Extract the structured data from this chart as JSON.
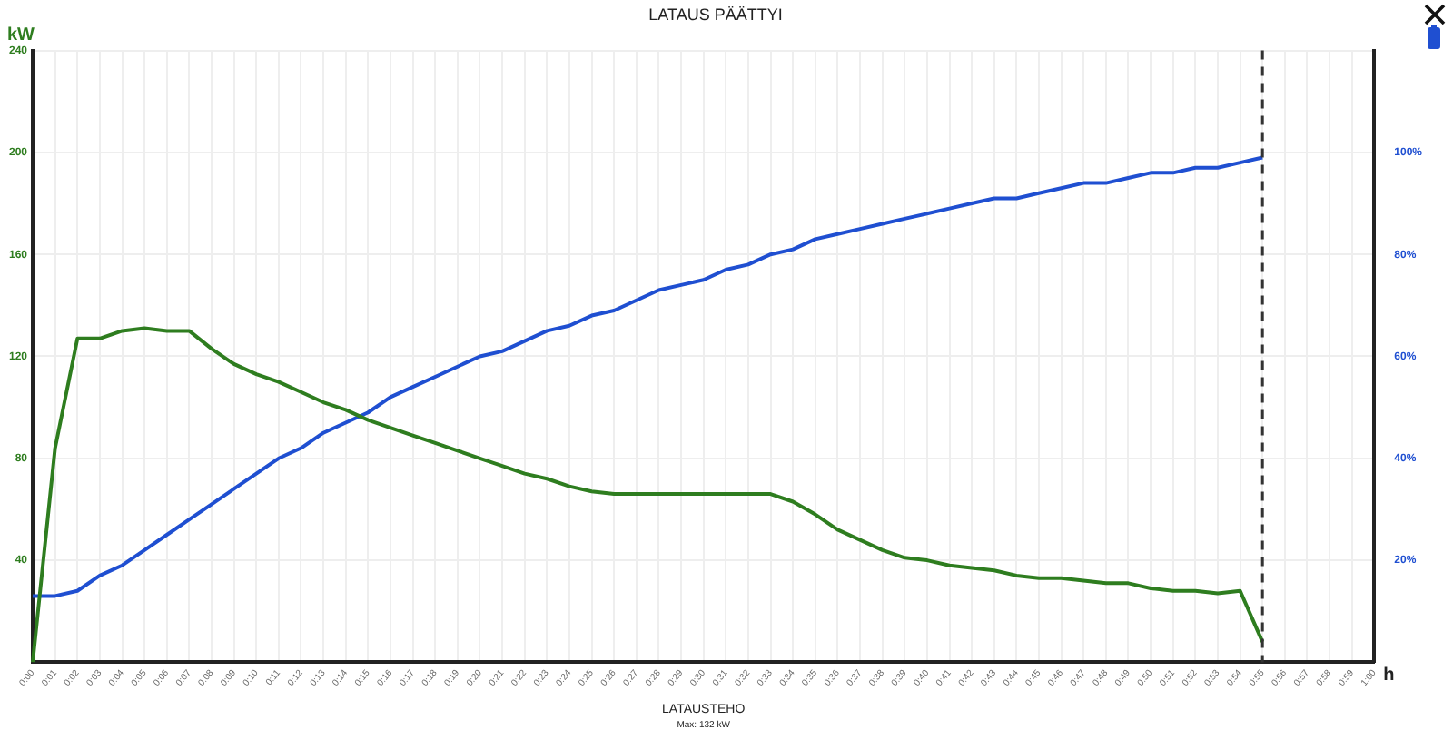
{
  "chart_data": {
    "type": "line",
    "title": "LATAUS PÄÄTTYI",
    "ylabel": "kW",
    "xlabel": "h",
    "annotations": [
      "LATAUSTEHO",
      "Max: 132 kW"
    ],
    "categories": [
      "0:00",
      "0:01",
      "0:02",
      "0:03",
      "0:04",
      "0:05",
      "0:06",
      "0:07",
      "0:08",
      "0:09",
      "0:10",
      "0:11",
      "0:12",
      "0:13",
      "0:14",
      "0:15",
      "0:16",
      "0:17",
      "0:18",
      "0:19",
      "0:20",
      "0:21",
      "0:22",
      "0:23",
      "0:24",
      "0:25",
      "0:26",
      "0:27",
      "0:28",
      "0:29",
      "0:30",
      "0:31",
      "0:32",
      "0:33",
      "0:34",
      "0:35",
      "0:36",
      "0:37",
      "0:38",
      "0:39",
      "0:40",
      "0:41",
      "0:42",
      "0:43",
      "0:44",
      "0:45",
      "0:46",
      "0:47",
      "0:48",
      "0:49",
      "0:50",
      "0:51",
      "0:52",
      "0:53",
      "0:54",
      "0:55",
      "0:56",
      "0:57",
      "0:58",
      "0:59",
      "1:00"
    ],
    "series": [
      {
        "color": "#2e7d1f",
        "values": [
          0,
          84,
          127,
          127,
          130,
          131,
          130,
          130,
          123,
          117,
          113,
          110,
          106,
          102,
          99,
          95,
          92,
          89,
          86,
          83,
          80,
          77,
          74,
          72,
          69,
          67,
          66,
          66,
          66,
          66,
          66,
          66,
          66,
          66,
          63,
          58,
          52,
          48,
          44,
          41,
          40,
          38,
          37,
          36,
          34,
          33,
          33,
          32,
          31,
          31,
          29,
          28,
          28,
          27,
          28,
          8,
          null,
          null,
          null,
          null,
          null
        ]
      },
      {
        "color": "#1f4fd1",
        "axis": "y2",
        "values": [
          13,
          13,
          14,
          17,
          19,
          22,
          25,
          28,
          31,
          34,
          37,
          40,
          42,
          45,
          47,
          49,
          52,
          54,
          56,
          58,
          60,
          61,
          63,
          65,
          66,
          68,
          69,
          71,
          73,
          74,
          75,
          77,
          78,
          80,
          81,
          83,
          84,
          85,
          86,
          87,
          88,
          89,
          90,
          91,
          91,
          92,
          93,
          94,
          94,
          95,
          96,
          96,
          97,
          97,
          98,
          99,
          null,
          null,
          null,
          null,
          null
        ]
      }
    ],
    "ylim": [
      0,
      240
    ],
    "yticks": [
      40,
      80,
      120,
      160,
      200,
      240
    ],
    "y2lim": [
      0,
      120
    ],
    "y2ticks": [
      {
        "value": 20,
        "label": "20%"
      },
      {
        "value": 40,
        "label": "40%"
      },
      {
        "value": 60,
        "label": "60%"
      },
      {
        "value": 80,
        "label": "80%"
      },
      {
        "value": 100,
        "label": "100%"
      }
    ],
    "ref_lines": [
      {
        "axis": "x",
        "value": "0:55",
        "color": "#333333",
        "line_style": "dashed"
      }
    ],
    "grid": true,
    "legend": false,
    "marker": "none",
    "line_style": "solid"
  }
}
